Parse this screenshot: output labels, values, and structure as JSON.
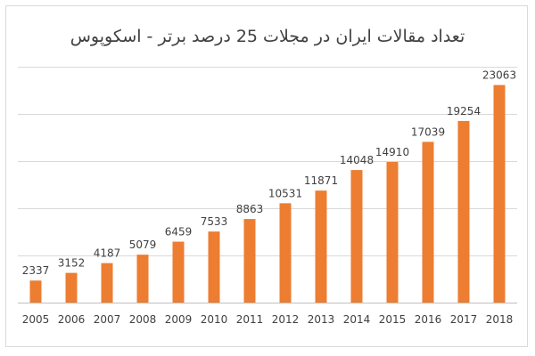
{
  "chart_data": {
    "type": "bar",
    "title": "تعداد مقالات ایران در مجلات 25 درصد برتر - اسکوپوس",
    "categories": [
      "2005",
      "2006",
      "2007",
      "2008",
      "2009",
      "2010",
      "2011",
      "2012",
      "2013",
      "2014",
      "2015",
      "2016",
      "2017",
      "2018"
    ],
    "series": [
      {
        "values": [
          2337,
          3152,
          4187,
          5079,
          6459,
          7533,
          8863,
          10531,
          11871,
          14048,
          14910,
          17039,
          19254,
          23063
        ],
        "color": "#ed7d31"
      }
    ],
    "ylim": [
      0,
      25000
    ],
    "grid": true,
    "legend": "none",
    "xlabel": "",
    "ylabel": ""
  }
}
